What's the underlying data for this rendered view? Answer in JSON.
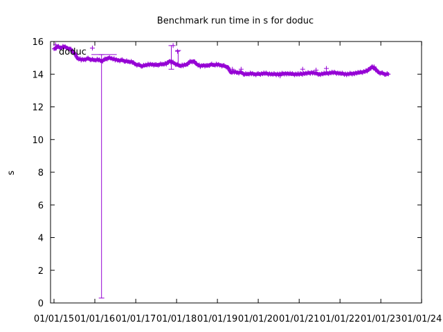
{
  "chart_data": {
    "type": "scatter",
    "title": "Benchmark run time in s for doduc",
    "xlabel": "",
    "ylabel": "s",
    "ylim": [
      0,
      16
    ],
    "y_ticks": [
      0,
      2,
      4,
      6,
      8,
      10,
      12,
      14,
      16
    ],
    "xlim": [
      "2014-12-01",
      "2023-12-31"
    ],
    "x_ticks": [
      "2015-01-01",
      "2016-01-01",
      "2017-01-01",
      "2018-01-01",
      "2019-01-01",
      "2020-01-01",
      "2021-01-01",
      "2022-01-01",
      "2023-01-01",
      "2024-01-01"
    ],
    "x_tick_labels": [
      "01/01/15",
      "01/01/16",
      "01/01/17",
      "01/01/18",
      "01/01/19",
      "01/01/20",
      "01/01/21",
      "01/01/22",
      "01/01/23",
      "01/01/24"
    ],
    "grid": false,
    "legend_position": "top-left",
    "series": [
      {
        "name": "doduc",
        "color": "#9400d3",
        "points": [
          [
            "2015-01-01",
            15.5
          ],
          [
            "2015-02-01",
            15.7
          ],
          [
            "2015-03-01",
            15.6
          ],
          [
            "2015-04-01",
            15.7
          ],
          [
            "2015-05-01",
            15.6
          ],
          [
            "2015-06-01",
            15.5
          ],
          [
            "2015-07-01",
            15.3
          ],
          [
            "2015-08-01",
            14.95
          ],
          [
            "2015-09-01",
            14.9
          ],
          [
            "2015-10-01",
            14.9
          ],
          [
            "2015-11-01",
            14.95
          ],
          [
            "2015-12-01",
            14.9
          ],
          [
            "2016-01-01",
            14.85
          ],
          [
            "2016-02-01",
            14.9
          ],
          [
            "2016-03-01",
            14.8
          ],
          [
            "2016-04-01",
            14.9
          ],
          [
            "2016-05-01",
            15.0
          ],
          [
            "2016-06-01",
            14.95
          ],
          [
            "2016-07-01",
            14.9
          ],
          [
            "2016-08-01",
            14.85
          ],
          [
            "2016-09-01",
            14.85
          ],
          [
            "2016-10-01",
            14.8
          ],
          [
            "2016-11-01",
            14.75
          ],
          [
            "2016-12-01",
            14.75
          ],
          [
            "2017-01-01",
            14.6
          ],
          [
            "2017-02-01",
            14.55
          ],
          [
            "2017-03-01",
            14.5
          ],
          [
            "2017-04-01",
            14.55
          ],
          [
            "2017-05-01",
            14.6
          ],
          [
            "2017-06-01",
            14.6
          ],
          [
            "2017-07-01",
            14.55
          ],
          [
            "2017-08-01",
            14.6
          ],
          [
            "2017-09-01",
            14.6
          ],
          [
            "2017-10-01",
            14.65
          ],
          [
            "2017-11-01",
            14.8
          ],
          [
            "2017-12-01",
            14.7
          ],
          [
            "2018-01-01",
            14.6
          ],
          [
            "2018-02-01",
            14.5
          ],
          [
            "2018-03-01",
            14.55
          ],
          [
            "2018-04-01",
            14.6
          ],
          [
            "2018-05-01",
            14.75
          ],
          [
            "2018-06-01",
            14.8
          ],
          [
            "2018-07-01",
            14.6
          ],
          [
            "2018-08-01",
            14.5
          ],
          [
            "2018-09-01",
            14.55
          ],
          [
            "2018-10-01",
            14.5
          ],
          [
            "2018-11-01",
            14.6
          ],
          [
            "2018-12-01",
            14.55
          ],
          [
            "2019-01-01",
            14.6
          ],
          [
            "2019-02-01",
            14.55
          ],
          [
            "2019-03-01",
            14.5
          ],
          [
            "2019-04-01",
            14.45
          ],
          [
            "2019-05-01",
            14.1
          ],
          [
            "2019-06-01",
            14.15
          ],
          [
            "2019-07-01",
            14.1
          ],
          [
            "2019-08-01",
            14.1
          ],
          [
            "2019-09-01",
            14.0
          ],
          [
            "2019-10-01",
            14.0
          ],
          [
            "2019-11-01",
            14.05
          ],
          [
            "2019-12-01",
            14.0
          ],
          [
            "2020-01-01",
            14.0
          ],
          [
            "2020-03-01",
            14.05
          ],
          [
            "2020-05-01",
            14.0
          ],
          [
            "2020-07-01",
            14.0
          ],
          [
            "2020-09-01",
            14.05
          ],
          [
            "2020-11-01",
            14.0
          ],
          [
            "2021-01-01",
            14.0
          ],
          [
            "2021-03-01",
            14.05
          ],
          [
            "2021-05-01",
            14.1
          ],
          [
            "2021-07-01",
            14.0
          ],
          [
            "2021-09-01",
            14.05
          ],
          [
            "2021-11-01",
            14.1
          ],
          [
            "2022-01-01",
            14.05
          ],
          [
            "2022-03-01",
            14.0
          ],
          [
            "2022-05-01",
            14.05
          ],
          [
            "2022-07-01",
            14.1
          ],
          [
            "2022-09-01",
            14.2
          ],
          [
            "2022-10-15",
            14.45
          ],
          [
            "2022-11-15",
            14.3
          ],
          [
            "2022-12-15",
            14.1
          ],
          [
            "2023-01-15",
            14.05
          ],
          [
            "2023-02-15",
            14.0
          ],
          [
            "2023-03-10",
            14.0
          ]
        ],
        "outliers": [
          [
            "2015-01-15",
            15.8
          ],
          [
            "2015-12-10",
            15.6
          ],
          [
            "2017-12-01",
            15.75
          ],
          [
            "2018-01-10",
            15.4
          ],
          [
            "2019-05-15",
            14.3
          ],
          [
            "2019-08-01",
            14.3
          ],
          [
            "2021-02-01",
            14.3
          ],
          [
            "2021-06-01",
            14.25
          ],
          [
            "2021-09-01",
            14.35
          ],
          [
            "2022-11-01",
            14.45
          ],
          [
            "2020-07-15",
            13.9
          ]
        ],
        "errorbars": [
          {
            "x": "2016-03-01",
            "y": 15.2,
            "ylow": 0.3,
            "yhigh": 15.2,
            "xlow": "2015-12-01",
            "xhigh": "2016-07-15"
          },
          {
            "x": "2017-11-15",
            "y": 15.75,
            "ylow": 14.3,
            "yhigh": 15.75,
            "xlow": "2017-11-15",
            "xhigh": "2017-11-15"
          },
          {
            "x": "2018-01-15",
            "y": 15.45,
            "ylow": 14.6,
            "yhigh": 15.45,
            "xlow": "2018-01-15",
            "xhigh": "2018-01-15"
          }
        ]
      }
    ]
  }
}
